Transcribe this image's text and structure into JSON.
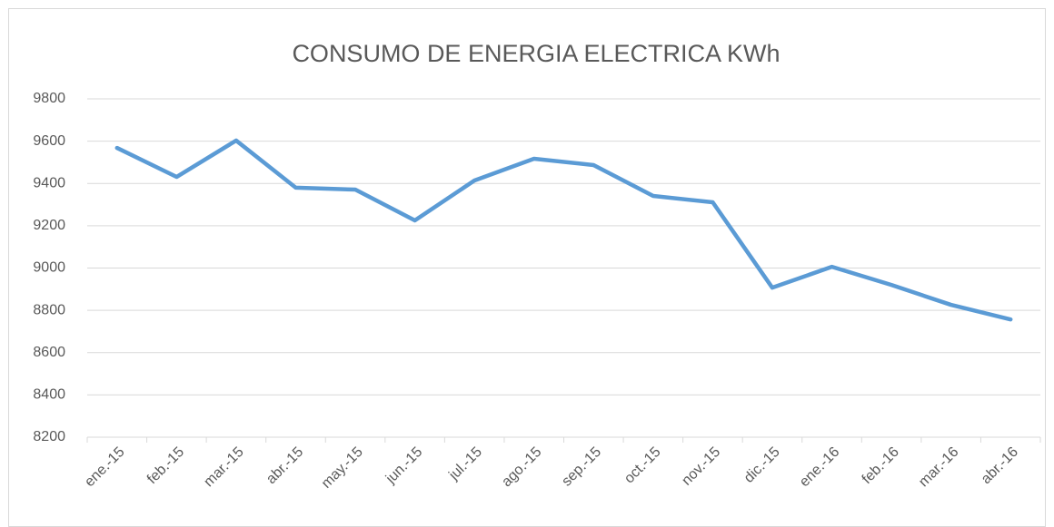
{
  "chart_data": {
    "type": "line",
    "title": "CONSUMO DE ENERGIA ELECTRICA KWh",
    "categories": [
      "ene.-15",
      "feb.-15",
      "mar.-15",
      "abr.-15",
      "may.-15",
      "jun.-15",
      "jul.-15",
      "ago.-15",
      "sep.-15",
      "oct.-15",
      "nov.-15",
      "dic.-15",
      "ene.-16",
      "feb.-16",
      "mar.-16",
      "abr.-16"
    ],
    "values": [
      9568,
      9431,
      9603,
      9380,
      9371,
      9225,
      9414,
      9517,
      9487,
      9341,
      9311,
      8907,
      9006,
      8920,
      8826,
      8757
    ],
    "color": "#5b9bd5",
    "ylim": [
      8200,
      9800
    ],
    "yticks": [
      8200,
      8400,
      8600,
      8800,
      9000,
      9200,
      9400,
      9600,
      9800
    ],
    "grid": true
  }
}
